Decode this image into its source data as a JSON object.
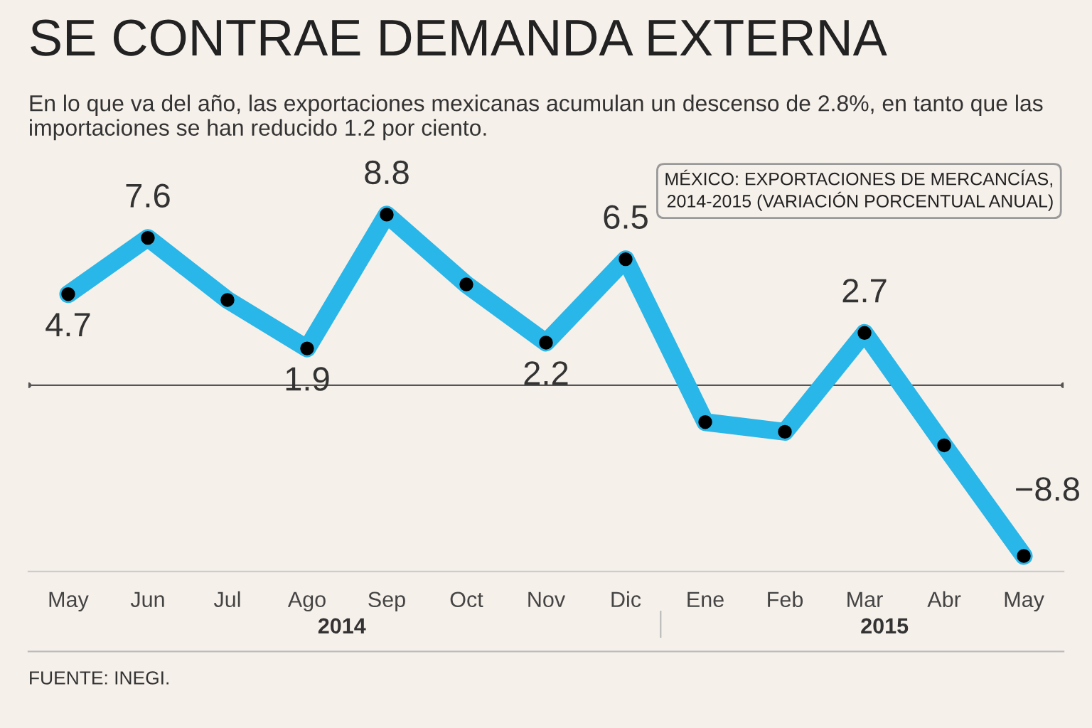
{
  "chart_data": {
    "type": "line",
    "title": "SE CONTRAE DEMANDA EXTERNA",
    "subtitle": "En lo que va del año, las exportaciones mexicanas acumulan un descenso de 2.8%, en tanto que las importaciones se han reducido 1.2 por ciento.",
    "categories": [
      "May",
      "Jun",
      "Jul",
      "Ago",
      "Sep",
      "Oct",
      "Nov",
      "Dic",
      "Ene",
      "Feb",
      "Mar",
      "Abr",
      "May"
    ],
    "series": [
      {
        "color": "#29b6e8",
        "values": [
          4.7,
          7.6,
          4.4,
          1.9,
          8.8,
          5.2,
          2.2,
          6.5,
          -1.9,
          -2.4,
          2.7,
          -3.1,
          -8.8
        ],
        "value_labels": [
          "4.7",
          "7.6",
          null,
          "1.9",
          "8.8",
          null,
          "2.2",
          "6.5",
          null,
          null,
          "2.7",
          null,
          "−8.8"
        ]
      }
    ],
    "marker": "circle",
    "line_style": "solid",
    "grid": false,
    "legend": false,
    "ref_lines": [
      {
        "axis": "y",
        "value": 0,
        "color": "#555555"
      }
    ],
    "annotations": [
      "MÉXICO: EXPORTACIONES DE MERCANCÍAS, 2014-2015 (VARIACIÓN PORCENTUAL ANUAL)",
      "2014",
      "2015",
      "FUENTE: INEGI."
    ]
  }
}
